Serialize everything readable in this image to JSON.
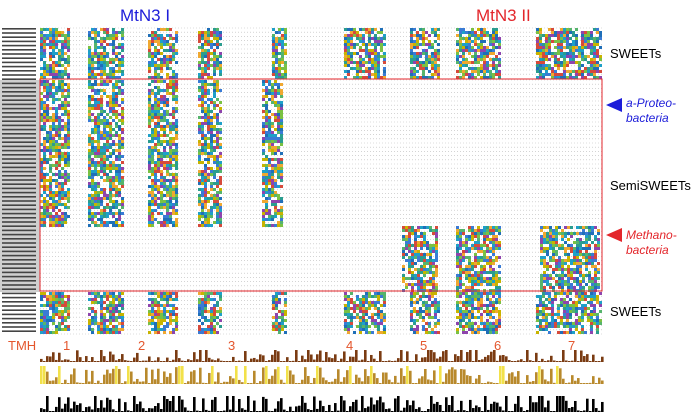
{
  "domains": {
    "mtn3_1": {
      "label": "MtN3 I",
      "color": "#1d1dd9"
    },
    "mtn3_2": {
      "label": "MtN3 II",
      "color": "#e3262b"
    }
  },
  "groups": {
    "sweets_top": "SWEETs",
    "semisweets": "SemiSWEETs",
    "sweets_bottom": "SWEETs"
  },
  "taxa": {
    "alpha_proteobacteria": {
      "line1": "a-Proteo-",
      "line2": "bacteria",
      "color": "#1d1dd9"
    },
    "methanobacteria": {
      "line1": "Methano-",
      "line2": "bacteria",
      "color": "#e3262b"
    }
  },
  "tmh": {
    "label": "TMH",
    "numbers": [
      "1",
      "2",
      "3",
      "4",
      "5",
      "6",
      "7"
    ],
    "color": "#e4572e"
  }
}
